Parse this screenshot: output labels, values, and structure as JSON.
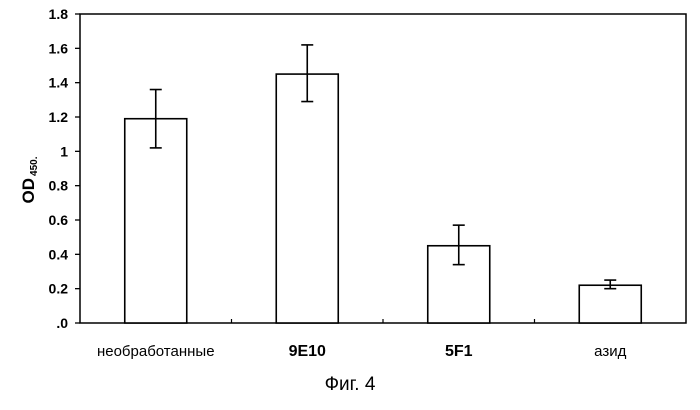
{
  "caption": "Фиг. 4",
  "chart_data": {
    "type": "bar",
    "categories": [
      "необработанные",
      "9E10",
      "5F1",
      "азид"
    ],
    "category_bold": [
      false,
      true,
      true,
      false
    ],
    "values": [
      1.19,
      1.45,
      0.45,
      0.22
    ],
    "error_bars": [
      {
        "low": 1.02,
        "high": 1.36
      },
      {
        "low": 1.29,
        "high": 1.62
      },
      {
        "low": 0.34,
        "high": 0.57
      },
      {
        "low": 0.2,
        "high": 0.25
      }
    ],
    "ylabel": "OD",
    "ylabel_subscript": "450.",
    "ylim": [
      0,
      1.8
    ],
    "yticks": [
      0,
      0.2,
      0.4,
      0.6,
      0.8,
      1,
      1.2,
      1.4,
      1.6,
      1.8
    ],
    "ytick_labels": [
      ".0",
      "0.2",
      "0.4",
      "0.6",
      "0.8",
      "1",
      "1.2",
      "1.4",
      "1.6",
      "1.8"
    ],
    "grid": false,
    "bar_fill": "#ffffff",
    "bar_stroke": "#000000"
  }
}
